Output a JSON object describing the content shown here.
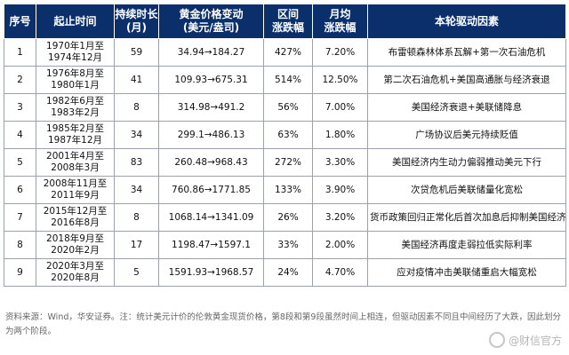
{
  "table": {
    "headers": [
      "序号",
      "起止时间",
      "持续时长\n(月)",
      "黄金价格变动\n(美元/盎司)",
      "区间\n涨跌幅",
      "月均\n涨跌幅",
      "本轮驱动因素"
    ],
    "rows": [
      {
        "no": "1",
        "period": "1970年1月至\n1974年12月",
        "months": "59",
        "price": "34.94→184.27",
        "range_change": "427%",
        "monthly_change": "7.20%",
        "driver": "布雷顿森林体系瓦解+第一次石油危机"
      },
      {
        "no": "2",
        "period": "1976年8月至\n1980年1月",
        "months": "41",
        "price": "109.93→675.31",
        "range_change": "514%",
        "monthly_change": "12.50%",
        "driver": "第二次石油危机+美国高通胀与经济衰退"
      },
      {
        "no": "3",
        "period": "1982年6月至\n1983年2月",
        "months": "8",
        "price": "314.98→491.2",
        "range_change": "56%",
        "monthly_change": "7.00%",
        "driver": "美国经济衰退+美联储降息"
      },
      {
        "no": "4",
        "period": "1985年2月至\n1987年12月",
        "months": "34",
        "price": "299.1→486.13",
        "range_change": "63%",
        "monthly_change": "1.80%",
        "driver": "广场协议后美元持续贬值"
      },
      {
        "no": "5",
        "period": "2001年4月至\n2008年3月",
        "months": "83",
        "price": "260.48→968.43",
        "range_change": "272%",
        "monthly_change": "3.30%",
        "driver": "美国经济内生动力偏弱推动美元下行"
      },
      {
        "no": "6",
        "period": "2008年11月至\n2011年9月",
        "months": "34",
        "price": "760.86→1771.85",
        "range_change": "133%",
        "monthly_change": "3.90%",
        "driver": "次贷危机后美联储量化宽松"
      },
      {
        "no": "7",
        "period": "2015年12月至\n2016年8月",
        "months": "8",
        "price": "1068.14→1341.09",
        "range_change": "26%",
        "monthly_change": "3.20%",
        "driver": "货币政策回归正常化后首次加息后抑制美国经济"
      },
      {
        "no": "8",
        "period": "2018年9月至\n2020年2月",
        "months": "17",
        "price": "1198.47→1597.1",
        "range_change": "33%",
        "monthly_change": "2.00%",
        "driver": "美国经济再度走弱拉低实际利率"
      },
      {
        "no": "9",
        "period": "2020年3月至\n2020年8月",
        "months": "5",
        "price": "1591.93→1968.57",
        "range_change": "24%",
        "monthly_change": "4.70%",
        "driver": "应对疫情冲击美联储重启大幅宽松"
      }
    ]
  },
  "note": "资料来源：Wind，华安证券。注：统计美元计价的伦敦黄金现货价格，第8段和第9段虽然时间上相连，但驱动因素不同且中间经历了大跌，因此划分为两个阶段。",
  "watermark": "@财信官方",
  "colors": {
    "header_bg": "#0a2f6b",
    "header_text": "#ffffff",
    "grid": "#9aa3ad"
  }
}
